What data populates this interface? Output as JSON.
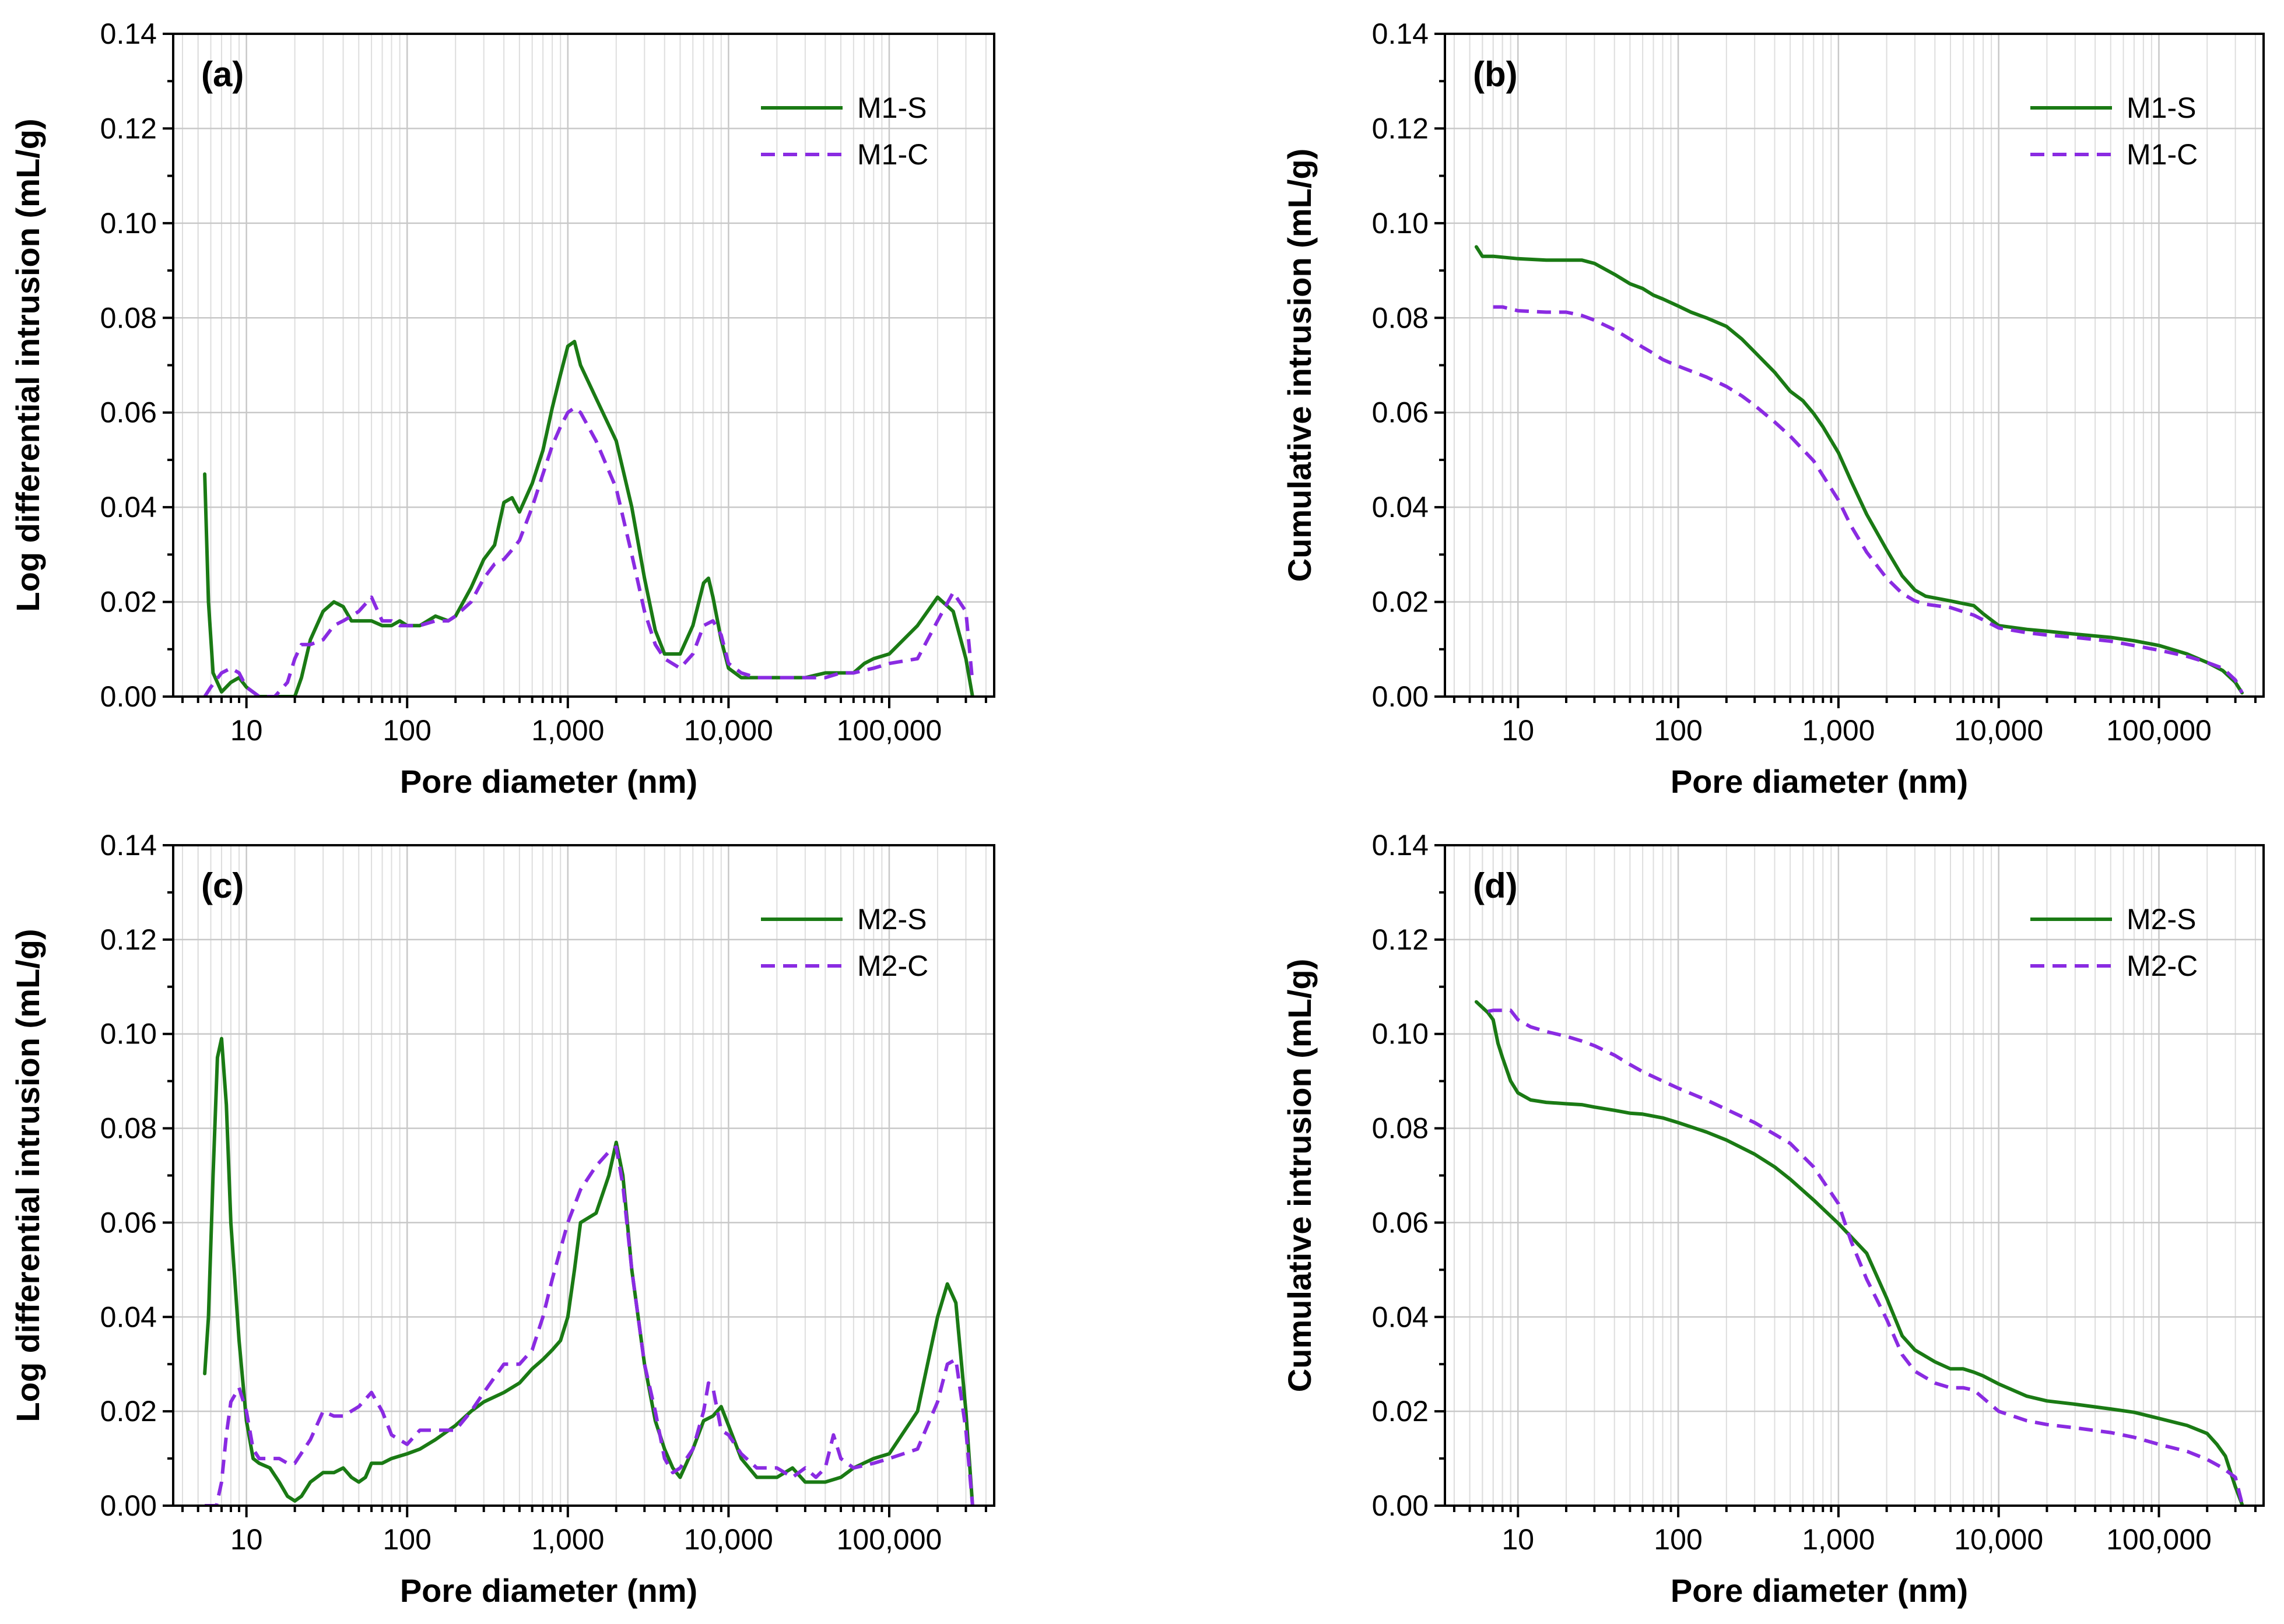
{
  "colors": {
    "solid": "#1a7a14",
    "dashed": "#8a2be2"
  },
  "chart_data": [
    {
      "id": "a",
      "type": "line",
      "panel_label": "(a)",
      "xlabel": "Pore diameter (nm)",
      "ylabel": "Log differential intrusion (mL/g)",
      "xscale": "log",
      "xlim": [
        3.5,
        450000
      ],
      "ylim": [
        0,
        0.14
      ],
      "yticks": [
        "0.00",
        "0.02",
        "0.04",
        "0.06",
        "0.08",
        "0.10",
        "0.12",
        "0.14"
      ],
      "xticks": [
        "10",
        "100",
        "1,000",
        "10,000",
        "100,000"
      ],
      "legend": "top-right",
      "series": [
        {
          "name": "M1-S",
          "style": "solid",
          "x": [
            5.5,
            5.8,
            6.2,
            7,
            8,
            9,
            10,
            12,
            15,
            18,
            20,
            22,
            25,
            30,
            35,
            40,
            45,
            50,
            60,
            70,
            80,
            90,
            100,
            120,
            150,
            180,
            200,
            250,
            300,
            350,
            400,
            450,
            500,
            600,
            700,
            800,
            900,
            1000,
            1100,
            1200,
            1500,
            2000,
            2500,
            3000,
            3500,
            4000,
            5000,
            6000,
            7000,
            7500,
            8000,
            9000,
            10000,
            12000,
            15000,
            20000,
            30000,
            40000,
            50000,
            60000,
            70000,
            80000,
            100000,
            150000,
            200000,
            250000,
            300000,
            330000
          ],
          "y": [
            0.047,
            0.02,
            0.005,
            0.001,
            0.003,
            0.004,
            0.002,
            0.0,
            0.0,
            0.0,
            0.0,
            0.004,
            0.012,
            0.018,
            0.02,
            0.019,
            0.016,
            0.016,
            0.016,
            0.015,
            0.015,
            0.016,
            0.015,
            0.015,
            0.017,
            0.016,
            0.017,
            0.023,
            0.029,
            0.032,
            0.041,
            0.042,
            0.039,
            0.045,
            0.052,
            0.061,
            0.068,
            0.074,
            0.075,
            0.07,
            0.063,
            0.054,
            0.04,
            0.025,
            0.014,
            0.009,
            0.009,
            0.015,
            0.024,
            0.025,
            0.021,
            0.012,
            0.006,
            0.004,
            0.004,
            0.004,
            0.004,
            0.005,
            0.005,
            0.005,
            0.007,
            0.008,
            0.009,
            0.015,
            0.021,
            0.018,
            0.008,
            0.0
          ]
        },
        {
          "name": "M1-C",
          "style": "dashed",
          "x": [
            5.5,
            6,
            7,
            8,
            9,
            10,
            12,
            15,
            18,
            20,
            22,
            25,
            30,
            35,
            40,
            45,
            50,
            60,
            70,
            80,
            90,
            100,
            120,
            150,
            180,
            200,
            250,
            300,
            350,
            400,
            450,
            500,
            600,
            700,
            800,
            900,
            1000,
            1100,
            1200,
            1500,
            2000,
            2500,
            3000,
            3500,
            4000,
            5000,
            6000,
            7000,
            8000,
            9000,
            10000,
            12000,
            15000,
            20000,
            30000,
            40000,
            50000,
            60000,
            80000,
            100000,
            150000,
            200000,
            250000,
            300000,
            330000
          ],
          "y": [
            0.0,
            0.002,
            0.005,
            0.006,
            0.005,
            0.002,
            0.0,
            0.0,
            0.003,
            0.008,
            0.011,
            0.011,
            0.012,
            0.015,
            0.016,
            0.017,
            0.018,
            0.021,
            0.016,
            0.016,
            0.015,
            0.015,
            0.015,
            0.016,
            0.016,
            0.017,
            0.02,
            0.025,
            0.028,
            0.029,
            0.031,
            0.033,
            0.04,
            0.047,
            0.053,
            0.057,
            0.06,
            0.061,
            0.06,
            0.054,
            0.044,
            0.03,
            0.018,
            0.011,
            0.008,
            0.006,
            0.009,
            0.015,
            0.016,
            0.013,
            0.007,
            0.005,
            0.004,
            0.004,
            0.004,
            0.004,
            0.005,
            0.005,
            0.006,
            0.007,
            0.008,
            0.016,
            0.022,
            0.018,
            0.003
          ]
        }
      ]
    },
    {
      "id": "b",
      "type": "line",
      "panel_label": "(b)",
      "xlabel": "Pore diameter (nm)",
      "ylabel": "Cumulative intrusion (mL/g)",
      "xscale": "log",
      "xlim": [
        3.5,
        450000
      ],
      "ylim": [
        0,
        0.14
      ],
      "yticks": [
        "0.00",
        "0.02",
        "0.04",
        "0.06",
        "0.08",
        "0.10",
        "0.12",
        "0.14"
      ],
      "xticks": [
        "10",
        "100",
        "1,000",
        "10,000",
        "100,000"
      ],
      "legend": "top-right",
      "series": [
        {
          "name": "M1-S",
          "style": "solid",
          "x": [
            5.5,
            6,
            7,
            10,
            15,
            20,
            25,
            30,
            40,
            50,
            60,
            70,
            80,
            100,
            120,
            150,
            200,
            250,
            300,
            400,
            500,
            600,
            700,
            800,
            1000,
            1200,
            1500,
            2000,
            2500,
            3000,
            3500,
            5000,
            7000,
            8000,
            10000,
            15000,
            20000,
            30000,
            50000,
            70000,
            100000,
            150000,
            200000,
            250000,
            300000,
            330000
          ],
          "y": [
            0.095,
            0.093,
            0.093,
            0.0925,
            0.0922,
            0.0922,
            0.0922,
            0.0915,
            0.0892,
            0.0872,
            0.0862,
            0.0848,
            0.084,
            0.0825,
            0.0812,
            0.08,
            0.0782,
            0.0755,
            0.0728,
            0.0685,
            0.0645,
            0.0625,
            0.0598,
            0.057,
            0.0515,
            0.0455,
            0.0385,
            0.031,
            0.0255,
            0.0225,
            0.0212,
            0.0202,
            0.0192,
            0.0175,
            0.015,
            0.0142,
            0.0138,
            0.0132,
            0.0125,
            0.0118,
            0.0108,
            0.009,
            0.0072,
            0.0055,
            0.003,
            0.0008
          ]
        },
        {
          "name": "M1-C",
          "style": "dashed",
          "x": [
            7,
            8,
            10,
            15,
            20,
            25,
            30,
            40,
            50,
            60,
            70,
            80,
            100,
            150,
            200,
            250,
            300,
            400,
            500,
            700,
            1000,
            1200,
            1500,
            2000,
            2500,
            3000,
            3500,
            5000,
            7000,
            10000,
            15000,
            20000,
            30000,
            50000,
            100000,
            150000,
            200000,
            250000,
            300000,
            330000
          ],
          "y": [
            0.0823,
            0.0823,
            0.0815,
            0.0812,
            0.0812,
            0.0805,
            0.0795,
            0.0775,
            0.0755,
            0.0738,
            0.0725,
            0.0712,
            0.0698,
            0.0675,
            0.0655,
            0.0635,
            0.0615,
            0.058,
            0.055,
            0.0498,
            0.0415,
            0.036,
            0.0305,
            0.025,
            0.0218,
            0.0202,
            0.0195,
            0.0188,
            0.0172,
            0.0145,
            0.0135,
            0.013,
            0.0125,
            0.0117,
            0.0098,
            0.0085,
            0.0072,
            0.006,
            0.0035,
            0.0008
          ]
        }
      ]
    },
    {
      "id": "c",
      "type": "line",
      "panel_label": "(c)",
      "xlabel": "Pore diameter (nm)",
      "ylabel": "Log differential intrusion (mL/g)",
      "xscale": "log",
      "xlim": [
        3.5,
        450000
      ],
      "ylim": [
        0,
        0.14
      ],
      "yticks": [
        "0.00",
        "0.02",
        "0.04",
        "0.06",
        "0.08",
        "0.10",
        "0.12",
        "0.14"
      ],
      "xticks": [
        "10",
        "100",
        "1,000",
        "10,000",
        "100,000"
      ],
      "legend": "top-right",
      "series": [
        {
          "name": "M2-S",
          "style": "solid",
          "x": [
            5.5,
            5.8,
            6.2,
            6.6,
            7,
            7.5,
            8,
            9,
            10,
            11,
            12,
            14,
            16,
            18,
            20,
            22,
            25,
            30,
            35,
            40,
            45,
            50,
            55,
            60,
            70,
            80,
            100,
            120,
            150,
            200,
            250,
            300,
            400,
            500,
            600,
            700,
            800,
            900,
            1000,
            1100,
            1200,
            1500,
            1800,
            2000,
            2200,
            2500,
            3000,
            3500,
            4000,
            4500,
            5000,
            6000,
            7000,
            8000,
            9000,
            10000,
            12000,
            15000,
            20000,
            25000,
            30000,
            40000,
            50000,
            60000,
            80000,
            100000,
            150000,
            200000,
            230000,
            260000,
            300000,
            330000
          ],
          "y": [
            0.028,
            0.04,
            0.07,
            0.095,
            0.099,
            0.085,
            0.06,
            0.035,
            0.018,
            0.01,
            0.009,
            0.008,
            0.005,
            0.002,
            0.001,
            0.002,
            0.005,
            0.007,
            0.007,
            0.008,
            0.006,
            0.005,
            0.006,
            0.009,
            0.009,
            0.01,
            0.011,
            0.012,
            0.014,
            0.017,
            0.02,
            0.022,
            0.024,
            0.026,
            0.029,
            0.031,
            0.033,
            0.035,
            0.04,
            0.05,
            0.06,
            0.062,
            0.07,
            0.077,
            0.07,
            0.05,
            0.03,
            0.018,
            0.012,
            0.008,
            0.006,
            0.012,
            0.018,
            0.019,
            0.021,
            0.017,
            0.01,
            0.006,
            0.006,
            0.008,
            0.005,
            0.005,
            0.006,
            0.008,
            0.01,
            0.011,
            0.02,
            0.04,
            0.047,
            0.043,
            0.02,
            0.0
          ]
        },
        {
          "name": "M2-C",
          "style": "dashed",
          "x": [
            5.5,
            6.5,
            7,
            7.5,
            8,
            9,
            10,
            11,
            12,
            14,
            16,
            18,
            20,
            25,
            30,
            35,
            40,
            50,
            60,
            70,
            80,
            100,
            120,
            150,
            200,
            250,
            300,
            400,
            500,
            600,
            700,
            800,
            1000,
            1200,
            1500,
            1800,
            2000,
            2200,
            2500,
            3000,
            3500,
            4000,
            4500,
            5000,
            6000,
            7000,
            7500,
            8000,
            9000,
            10000,
            12000,
            15000,
            20000,
            25000,
            30000,
            35000,
            40000,
            45000,
            50000,
            60000,
            80000,
            100000,
            150000,
            200000,
            230000,
            260000,
            300000,
            330000
          ],
          "y": [
            0.0,
            0.0,
            0.005,
            0.015,
            0.022,
            0.025,
            0.02,
            0.012,
            0.01,
            0.01,
            0.01,
            0.009,
            0.009,
            0.014,
            0.02,
            0.019,
            0.019,
            0.021,
            0.024,
            0.02,
            0.015,
            0.013,
            0.016,
            0.016,
            0.016,
            0.02,
            0.024,
            0.03,
            0.03,
            0.033,
            0.04,
            0.048,
            0.06,
            0.067,
            0.072,
            0.075,
            0.076,
            0.068,
            0.05,
            0.03,
            0.02,
            0.01,
            0.007,
            0.008,
            0.012,
            0.02,
            0.026,
            0.025,
            0.016,
            0.015,
            0.011,
            0.008,
            0.008,
            0.006,
            0.008,
            0.006,
            0.008,
            0.015,
            0.01,
            0.008,
            0.009,
            0.01,
            0.012,
            0.022,
            0.03,
            0.031,
            0.016,
            0.0
          ]
        }
      ]
    },
    {
      "id": "d",
      "type": "line",
      "panel_label": "(d)",
      "xlabel": "Pore diameter (nm)",
      "ylabel": "Cumulative intrusion (mL/g)",
      "xscale": "log",
      "xlim": [
        3.5,
        450000
      ],
      "ylim": [
        0,
        0.14
      ],
      "yticks": [
        "0.00",
        "0.02",
        "0.04",
        "0.06",
        "0.08",
        "0.10",
        "0.12",
        "0.14"
      ],
      "xticks": [
        "10",
        "100",
        "1,000",
        "10,000",
        "100,000"
      ],
      "legend": "top-right",
      "series": [
        {
          "name": "M2-S",
          "style": "solid",
          "x": [
            5.5,
            6.5,
            7,
            7.5,
            8,
            9,
            10,
            12,
            15,
            20,
            25,
            30,
            40,
            50,
            60,
            80,
            100,
            150,
            200,
            300,
            400,
            500,
            700,
            1000,
            1500,
            2000,
            2500,
            3000,
            4000,
            5000,
            6000,
            7000,
            8000,
            10000,
            15000,
            20000,
            30000,
            50000,
            70000,
            100000,
            150000,
            200000,
            230000,
            260000,
            300000,
            330000
          ],
          "y": [
            0.1068,
            0.1045,
            0.103,
            0.098,
            0.095,
            0.09,
            0.0875,
            0.086,
            0.0855,
            0.0852,
            0.085,
            0.0845,
            0.0838,
            0.0832,
            0.083,
            0.0822,
            0.0812,
            0.0792,
            0.0775,
            0.0745,
            0.0718,
            0.0692,
            0.0648,
            0.0598,
            0.0535,
            0.044,
            0.036,
            0.033,
            0.0305,
            0.029,
            0.029,
            0.0283,
            0.0275,
            0.0258,
            0.0232,
            0.0222,
            0.0215,
            0.0205,
            0.0198,
            0.0185,
            0.017,
            0.0153,
            0.013,
            0.0105,
            0.004,
            0.0003
          ]
        },
        {
          "name": "M2-C",
          "style": "dashed",
          "x": [
            6.5,
            7,
            8,
            9,
            10,
            12,
            15,
            20,
            25,
            30,
            40,
            50,
            60,
            80,
            100,
            150,
            200,
            300,
            500,
            700,
            1000,
            1200,
            1500,
            2000,
            2500,
            3000,
            4000,
            5000,
            6000,
            7000,
            10000,
            15000,
            20000,
            30000,
            50000,
            70000,
            100000,
            150000,
            200000,
            250000,
            300000,
            330000
          ],
          "y": [
            0.1048,
            0.105,
            0.105,
            0.105,
            0.103,
            0.1015,
            0.1005,
            0.0995,
            0.0985,
            0.0975,
            0.0955,
            0.0935,
            0.092,
            0.09,
            0.0885,
            0.086,
            0.084,
            0.0812,
            0.0768,
            0.0718,
            0.064,
            0.056,
            0.048,
            0.0395,
            0.032,
            0.0285,
            0.026,
            0.025,
            0.025,
            0.0245,
            0.02,
            0.018,
            0.0172,
            0.0165,
            0.0155,
            0.0145,
            0.013,
            0.0115,
            0.0098,
            0.008,
            0.006,
            0.0005
          ]
        }
      ]
    }
  ]
}
